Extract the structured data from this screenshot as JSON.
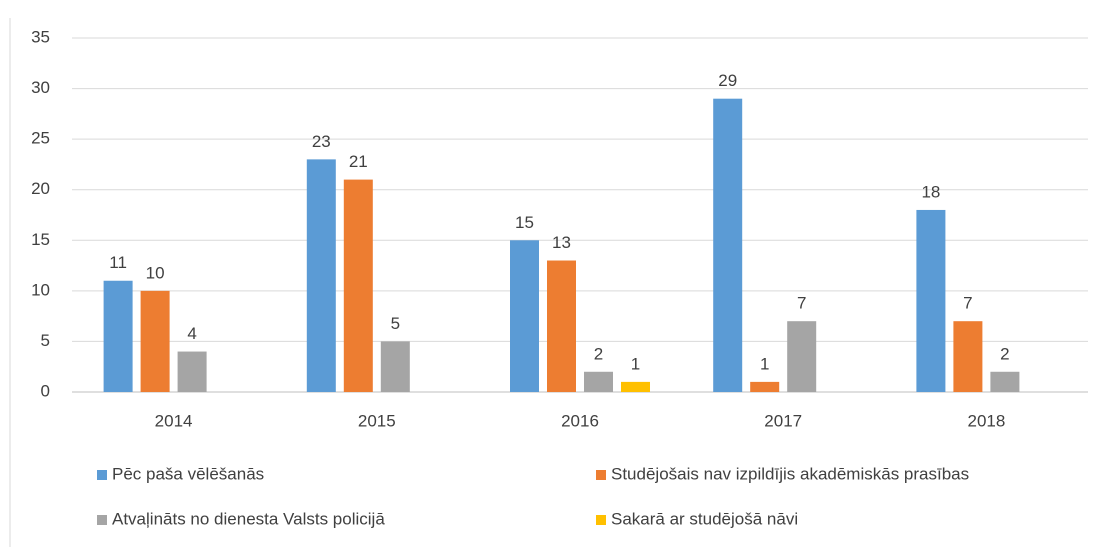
{
  "chart_data": {
    "type": "bar",
    "categories": [
      "2014",
      "2015",
      "2016",
      "2017",
      "2018"
    ],
    "series": [
      {
        "name": "Pēc paša vēlēšanās",
        "color": "#5b9bd5",
        "values": [
          11,
          23,
          15,
          29,
          18
        ]
      },
      {
        "name": "Studējošais nav izpildījis akadēmiskās prasības",
        "color": "#ed7d31",
        "values": [
          10,
          21,
          13,
          1,
          7
        ]
      },
      {
        "name": "Atvaļināts no dienesta Valsts policijā",
        "color": "#a5a5a5",
        "values": [
          4,
          5,
          2,
          7,
          2
        ]
      },
      {
        "name": "Sakarā ar studējošā nāvi",
        "color": "#ffc000",
        "values": [
          null,
          null,
          1,
          null,
          null
        ]
      }
    ],
    "ylim": [
      0,
      35
    ],
    "yticks": [
      0,
      5,
      10,
      15,
      20,
      25,
      30,
      35
    ],
    "grid": true,
    "legend": "bottom"
  }
}
